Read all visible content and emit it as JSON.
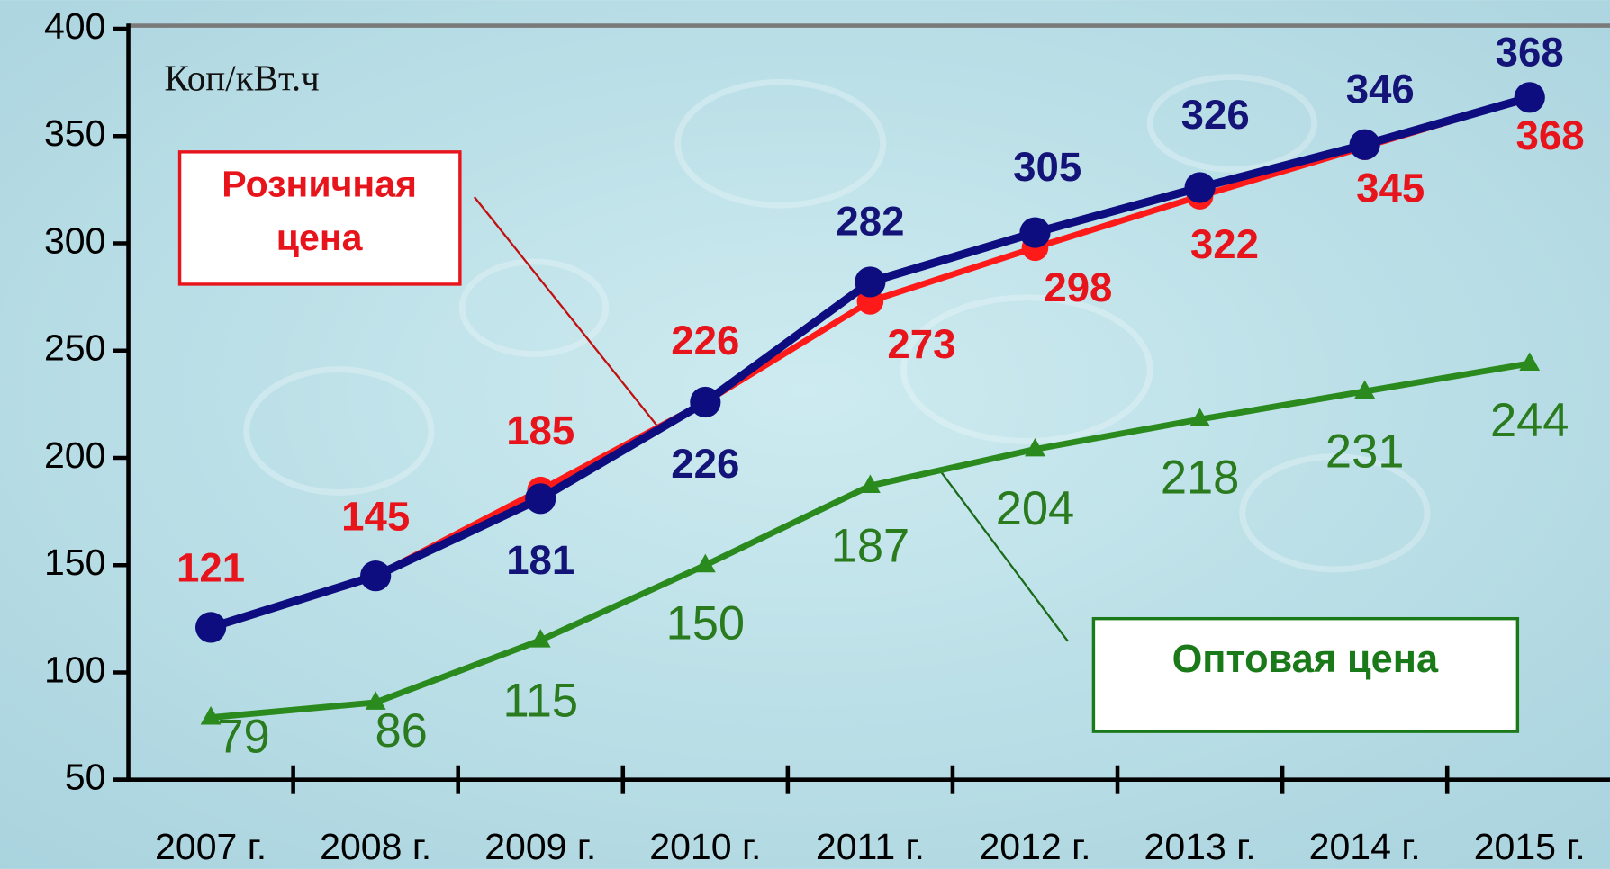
{
  "chart_data": {
    "type": "line",
    "unit_label": "Коп/кВт.ч",
    "annotations": [
      {
        "lines": [
          "Розничная",
          "цена"
        ],
        "color": "#e8141c"
      },
      {
        "lines": [
          "Оптовая цена"
        ],
        "color": "#1a7a1a"
      }
    ],
    "categories": [
      "2007 г.",
      "2008 г.",
      "2009 г.",
      "2010 г.",
      "2011 г.",
      "2012 г.",
      "2013 г.",
      "2014 г.",
      "2015 г."
    ],
    "series": [
      {
        "color": "#ff1a1a",
        "label_color": "#e8141c",
        "marker": "circle",
        "values": [
          121,
          145,
          185,
          226,
          273,
          298,
          322,
          345,
          368
        ]
      },
      {
        "color": "#0d0d80",
        "label_color": "#141478",
        "marker": "circle",
        "values": [
          121,
          145,
          181,
          226,
          282,
          305,
          326,
          346,
          368
        ],
        "value_labels": [
          null,
          null,
          "181",
          "226",
          "282",
          "305",
          "326",
          "346",
          "368"
        ]
      },
      {
        "color": "#2a8a1e",
        "label_color": "#2a7a1e",
        "marker": "triangle",
        "values": [
          79,
          86,
          115,
          150,
          187,
          204,
          218,
          231,
          244
        ]
      }
    ],
    "ylim": [
      50,
      400
    ],
    "yticks": [
      50,
      100,
      150,
      200,
      250,
      300,
      350,
      400
    ]
  }
}
